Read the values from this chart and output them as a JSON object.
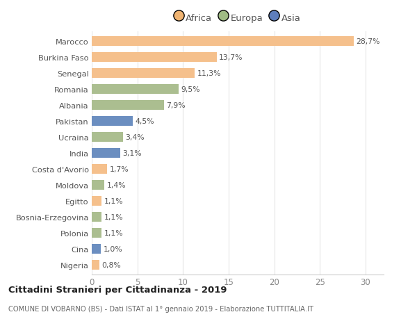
{
  "countries": [
    "Marocco",
    "Burkina Faso",
    "Senegal",
    "Romania",
    "Albania",
    "Pakistan",
    "Ucraina",
    "India",
    "Costa d'Avorio",
    "Moldova",
    "Egitto",
    "Bosnia-Erzegovina",
    "Polonia",
    "Cina",
    "Nigeria"
  ],
  "values": [
    28.7,
    13.7,
    11.3,
    9.5,
    7.9,
    4.5,
    3.4,
    3.1,
    1.7,
    1.4,
    1.1,
    1.1,
    1.1,
    1.0,
    0.8
  ],
  "labels": [
    "28,7%",
    "13,7%",
    "11,3%",
    "9,5%",
    "7,9%",
    "4,5%",
    "3,4%",
    "3,1%",
    "1,7%",
    "1,4%",
    "1,1%",
    "1,1%",
    "1,1%",
    "1,0%",
    "0,8%"
  ],
  "continents": [
    "Africa",
    "Africa",
    "Africa",
    "Europa",
    "Europa",
    "Asia",
    "Europa",
    "Asia",
    "Africa",
    "Europa",
    "Africa",
    "Europa",
    "Europa",
    "Asia",
    "Africa"
  ],
  "colors": {
    "Africa": "#F5C08C",
    "Europa": "#ABBE90",
    "Asia": "#6B8EC0"
  },
  "legend_colors": {
    "Africa": "#F0B472",
    "Europa": "#A0BB84",
    "Asia": "#5E7EBC"
  },
  "title1": "Cittadini Stranieri per Cittadinanza - 2019",
  "title2": "COMUNE DI VOBARNO (BS) - Dati ISTAT al 1° gennaio 2019 - Elaborazione TUTTITALIA.IT",
  "xlim": [
    0,
    32
  ],
  "xticks": [
    0,
    5,
    10,
    15,
    20,
    25,
    30
  ],
  "background_color": "#FFFFFF",
  "grid_color": "#E5E5E5",
  "bar_height": 0.62,
  "figsize": [
    6.0,
    4.6
  ],
  "dpi": 100
}
